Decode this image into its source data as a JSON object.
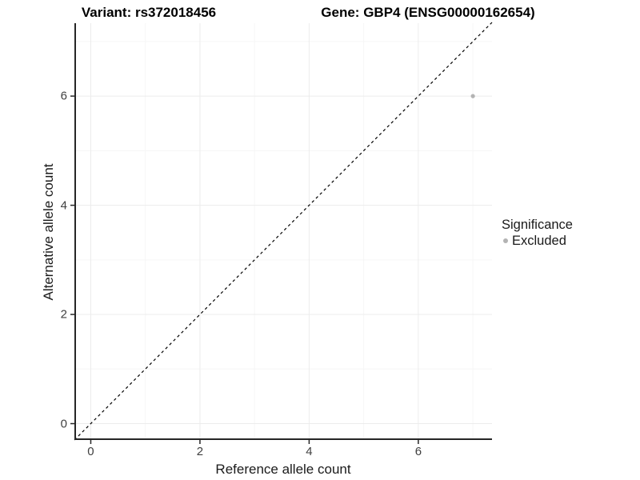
{
  "chart_data": {
    "type": "scatter",
    "titles": {
      "left": "Variant: rs372018456",
      "right": "Gene: GBP4 (ENSG00000162654)"
    },
    "xlabel": "Reference allele count",
    "ylabel": "Alternative allele count",
    "xlim": [
      -0.3,
      7.35
    ],
    "ylim": [
      -0.3,
      7.35
    ],
    "x_ticks": [
      0,
      2,
      4,
      6
    ],
    "y_ticks": [
      0,
      2,
      4,
      6
    ],
    "x_minor_gridlines": [
      1,
      3,
      5,
      7
    ],
    "y_minor_gridlines": [
      1,
      3,
      5,
      7
    ],
    "grid": {
      "major_color": "#ececec",
      "minor_color": "#f6f6f6"
    },
    "axis_line_color": "#262626",
    "identity_line": {
      "style": "dashed",
      "color": "#000000",
      "slope": 1,
      "intercept": 0
    },
    "series": [
      {
        "name": "Excluded",
        "color": "#b3b3b3",
        "points": [
          {
            "x": 7,
            "y": 6
          }
        ]
      }
    ],
    "legend": {
      "title": "Significance",
      "position": "right",
      "entries": [
        {
          "label": "Excluded",
          "color": "#b3b3b3"
        }
      ]
    }
  }
}
